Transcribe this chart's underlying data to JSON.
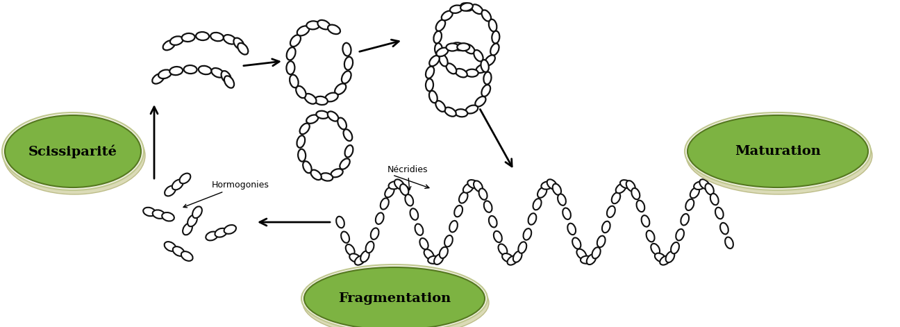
{
  "background_color": "#ffffff",
  "ellipse_color": "#7db342",
  "ellipse_outer_color": "#dde8b0",
  "ellipse_border_color": "#c0c890",
  "labels": {
    "scissiparite": "Scissiparité",
    "maturation": "Maturation",
    "fragmentation": "Fragmentation"
  },
  "label_fontsize": 14,
  "annotation_fontsize": 9,
  "annotation_hormogonies": "Hormogonies",
  "annotation_necridies": "Nécridies",
  "fig_width": 12.96,
  "fig_height": 4.71
}
